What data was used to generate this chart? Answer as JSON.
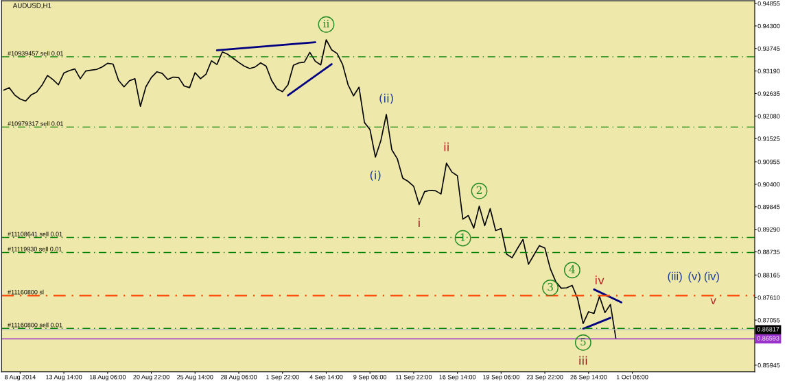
{
  "chart_data": {
    "type": "line",
    "title": "AUDUSD,H1",
    "categories": [
      null,
      null,
      null,
      "8 Aug 2014",
      null,
      null,
      null,
      null,
      null,
      null,
      null,
      "13 Aug 14:00",
      null,
      null,
      null,
      null,
      null,
      null,
      null,
      "18 Aug 06:00",
      null,
      null,
      null,
      null,
      null,
      null,
      null,
      "20 Aug 22:00",
      null,
      null,
      null,
      null,
      null,
      null,
      null,
      "25 Aug 14:00",
      null,
      null,
      null,
      null,
      null,
      null,
      null,
      "28 Aug 06:00",
      null,
      null,
      null,
      null,
      null,
      null,
      null,
      "1 Sep 22:00",
      null,
      null,
      null,
      null,
      null,
      null,
      null,
      "4 Sep 14:00",
      null,
      null,
      null,
      null,
      null,
      null,
      null,
      "9 Sep 06:00",
      null,
      null,
      null,
      null,
      null,
      null,
      null,
      "11 Sep 22:00",
      null,
      null,
      null,
      null,
      null,
      null,
      null,
      "16 Sep 14:00",
      null,
      null,
      null,
      null,
      null,
      null,
      null,
      "19 Sep 06:00",
      null,
      null,
      null,
      null,
      null,
      null,
      null,
      "23 Sep 22:00",
      null,
      null,
      null,
      null,
      null,
      null,
      null,
      "26 Sep 14:00",
      null,
      null,
      null,
      null,
      null,
      null,
      null,
      "1 Oct 06:00",
      null,
      null,
      null,
      null,
      null,
      null,
      null,
      null,
      null,
      null,
      null,
      null,
      null,
      null,
      null,
      null,
      null,
      null,
      null,
      null,
      null,
      null
    ],
    "ylim": [
      0.8578,
      0.9492
    ],
    "yticks": [
      {
        "value": 0.94855,
        "label": "0.94855"
      },
      {
        "value": 0.943,
        "label": "0.94300"
      },
      {
        "value": 0.93745,
        "label": "0.93745"
      },
      {
        "value": 0.9319,
        "label": "0.93190"
      },
      {
        "value": 0.92635,
        "label": "0.92635"
      },
      {
        "value": 0.9208,
        "label": "0.92080"
      },
      {
        "value": 0.91525,
        "label": "0.91525"
      },
      {
        "value": 0.90955,
        "label": "0.90955"
      },
      {
        "value": 0.904,
        "label": "0.90400"
      },
      {
        "value": 0.89845,
        "label": "0.89845"
      },
      {
        "value": 0.8929,
        "label": "0.89290"
      },
      {
        "value": 0.88735,
        "label": "0.88735"
      },
      {
        "value": 0.88165,
        "label": "0.88165"
      },
      {
        "value": 0.8761,
        "label": "0.87610"
      },
      {
        "value": 0.87055,
        "label": "0.87055"
      },
      {
        "value": 0.865,
        "label": null
      },
      {
        "value": 0.85945,
        "label": "0.85945"
      }
    ],
    "series": [
      {
        "color": "#000000",
        "values": [
          0.9272,
          0.9278,
          0.926,
          0.925,
          0.9245,
          0.926,
          0.9267,
          0.9284,
          0.9308,
          0.9298,
          0.9285,
          0.9314,
          0.932,
          0.9324,
          0.93,
          0.9319,
          0.9321,
          0.9323,
          0.9329,
          0.9338,
          0.9336,
          0.9296,
          0.928,
          0.9295,
          0.93,
          0.9232,
          0.928,
          0.9303,
          0.9317,
          0.9313,
          0.9298,
          0.9304,
          0.9303,
          0.9282,
          0.9278,
          0.9315,
          0.93,
          0.9311,
          0.9344,
          0.9335,
          0.9366,
          0.936,
          0.935,
          0.934,
          0.9331,
          0.9325,
          0.9329,
          0.9339,
          0.9331,
          0.9296,
          0.9275,
          0.9268,
          0.9285,
          0.9333,
          0.9339,
          0.9341,
          0.9365,
          0.9343,
          0.9334,
          0.9396,
          0.9371,
          0.9362,
          0.9335,
          0.9285,
          0.9258,
          0.9279,
          0.9192,
          0.9175,
          0.9107,
          0.9148,
          0.9212,
          0.9125,
          0.9103,
          0.9055,
          0.9047,
          0.9035,
          0.899,
          0.9022,
          0.9025,
          0.9024,
          0.9016,
          0.9092,
          0.907,
          0.9061,
          0.8954,
          0.8963,
          0.8932,
          0.8986,
          0.8938,
          0.898,
          0.8926,
          0.8931,
          0.8868,
          0.8859,
          0.8882,
          0.8904,
          0.8843,
          0.8866,
          0.8889,
          0.8883,
          0.8832,
          0.88,
          0.8784,
          0.8785,
          0.8791,
          0.8758,
          0.8697,
          0.8726,
          0.8722,
          0.8764,
          0.8724,
          0.8744,
          0.866,
          null,
          null,
          null,
          null,
          null,
          null,
          null,
          null,
          null,
          null,
          null,
          null,
          null,
          null,
          null,
          null,
          null,
          null,
          null,
          null,
          null,
          null,
          null,
          null,
          null
        ]
      },
      {
        "color": "#000080",
        "values": [
          null,
          null,
          null,
          null,
          null,
          null,
          null,
          null,
          null,
          null,
          null,
          null,
          null,
          null,
          null,
          null,
          null,
          null,
          null,
          null,
          null,
          null,
          null,
          null,
          null,
          null,
          null,
          null,
          null,
          null,
          null,
          null,
          null,
          null,
          null,
          null,
          null,
          null,
          null,
          0.937,
          null,
          null,
          null,
          null,
          null,
          null,
          null,
          null,
          null,
          null,
          null,
          null,
          null,
          null,
          null,
          null,
          null,
          0.939,
          null,
          null,
          null,
          null,
          null,
          null,
          null,
          null,
          null,
          null,
          null,
          null,
          null,
          null,
          null,
          null,
          null,
          null,
          null,
          null,
          null,
          null,
          null,
          null,
          null,
          null,
          null,
          null,
          null,
          null,
          null,
          null,
          null,
          null,
          null,
          null,
          null,
          null,
          null,
          null,
          null,
          null,
          null,
          null,
          null,
          null,
          null,
          null,
          null,
          null,
          null,
          null,
          null,
          null,
          null,
          null,
          null,
          null,
          null,
          null,
          null,
          null,
          null,
          null,
          null,
          null,
          null,
          null,
          null,
          null,
          null,
          null,
          null,
          null,
          null,
          null,
          null,
          null,
          null,
          null
        ]
      },
      {
        "color": "#000080",
        "values": [
          null,
          null,
          null,
          null,
          null,
          null,
          null,
          null,
          null,
          null,
          null,
          null,
          null,
          null,
          null,
          null,
          null,
          null,
          null,
          null,
          null,
          null,
          null,
          null,
          null,
          null,
          null,
          null,
          null,
          null,
          null,
          null,
          null,
          null,
          null,
          null,
          null,
          null,
          null,
          null,
          null,
          null,
          null,
          null,
          null,
          null,
          null,
          null,
          null,
          null,
          null,
          null,
          0.9259,
          null,
          null,
          null,
          null,
          null,
          null,
          null,
          0.9336,
          null,
          null,
          null,
          null,
          null,
          null,
          null,
          null,
          null,
          null,
          null,
          null,
          null,
          null,
          null,
          null,
          null,
          null,
          null,
          null,
          null,
          null,
          null,
          null,
          null,
          null,
          null,
          null,
          null,
          null,
          null,
          null,
          null,
          null,
          null,
          null,
          null,
          null,
          null,
          null,
          null,
          null,
          null,
          null,
          null,
          null,
          null,
          null,
          null,
          null,
          null,
          null,
          null,
          null,
          null,
          null,
          null,
          null,
          null,
          null,
          null,
          null,
          null,
          null,
          null,
          null,
          null,
          null,
          null,
          null,
          null,
          null,
          null,
          null,
          null,
          null,
          null
        ]
      },
      {
        "color": "#000080",
        "values": [
          null,
          null,
          null,
          null,
          null,
          null,
          null,
          null,
          null,
          null,
          null,
          null,
          null,
          null,
          null,
          null,
          null,
          null,
          null,
          null,
          null,
          null,
          null,
          null,
          null,
          null,
          null,
          null,
          null,
          null,
          null,
          null,
          null,
          null,
          null,
          null,
          null,
          null,
          null,
          null,
          null,
          null,
          null,
          null,
          null,
          null,
          null,
          null,
          null,
          null,
          null,
          null,
          null,
          null,
          null,
          null,
          null,
          null,
          null,
          null,
          null,
          null,
          null,
          null,
          null,
          null,
          null,
          null,
          null,
          null,
          null,
          null,
          null,
          null,
          null,
          null,
          null,
          null,
          null,
          null,
          null,
          null,
          null,
          null,
          null,
          null,
          null,
          null,
          null,
          null,
          null,
          null,
          null,
          null,
          null,
          null,
          null,
          null,
          null,
          null,
          null,
          null,
          null,
          null,
          null,
          null,
          null,
          null,
          0.8781,
          null,
          null,
          null,
          null,
          0.8749,
          null,
          null,
          null,
          null,
          null,
          null,
          null,
          null,
          null,
          null,
          null,
          null,
          null,
          null,
          null,
          null,
          null,
          null,
          null,
          null,
          null,
          null,
          null,
          null
        ]
      },
      {
        "color": "#000080",
        "values": [
          null,
          null,
          null,
          null,
          null,
          null,
          null,
          null,
          null,
          null,
          null,
          null,
          null,
          null,
          null,
          null,
          null,
          null,
          null,
          null,
          null,
          null,
          null,
          null,
          null,
          null,
          null,
          null,
          null,
          null,
          null,
          null,
          null,
          null,
          null,
          null,
          null,
          null,
          null,
          null,
          null,
          null,
          null,
          null,
          null,
          null,
          null,
          null,
          null,
          null,
          null,
          null,
          null,
          null,
          null,
          null,
          null,
          null,
          null,
          null,
          null,
          null,
          null,
          null,
          null,
          null,
          null,
          null,
          null,
          null,
          null,
          null,
          null,
          null,
          null,
          null,
          null,
          null,
          null,
          null,
          null,
          null,
          null,
          null,
          null,
          null,
          null,
          null,
          null,
          null,
          null,
          null,
          null,
          null,
          null,
          null,
          null,
          null,
          null,
          null,
          null,
          null,
          null,
          null,
          null,
          null,
          0.8684,
          null,
          null,
          null,
          null,
          0.8711,
          null,
          null,
          null,
          null,
          null,
          null,
          null,
          null,
          null,
          null,
          null,
          null,
          null,
          null,
          null,
          null,
          null,
          null,
          null,
          null,
          null,
          null,
          null,
          null,
          null,
          null
        ]
      }
    ],
    "ref_lines": [
      {
        "axis": "y",
        "value": 0.9354,
        "label": "#10939457 sell 0.01",
        "color": "#008000",
        "line_style": "dashdot"
      },
      {
        "axis": "y",
        "value": 0.9181,
        "label": "#10979317 sell 0.01",
        "color": "#008000",
        "line_style": "dashdot"
      },
      {
        "axis": "y",
        "value": 0.8909,
        "label": "#11108641 sell 0.01",
        "color": "#008000",
        "line_style": "dashdot"
      },
      {
        "axis": "y",
        "value": 0.8872,
        "label": "#11119930 sell 0.01",
        "color": "#008000",
        "line_style": "dashdot"
      },
      {
        "axis": "y",
        "value": 0.8766,
        "label": "#11160800 sl",
        "color": "#ff4500",
        "line_style": "dashdot"
      },
      {
        "axis": "y",
        "value": 0.8685,
        "label": "#11160800 sell 0.01",
        "color": "#008000",
        "line_style": "dashdot"
      },
      {
        "axis": "y",
        "value": 0.86817,
        "label": "0.86817",
        "color": "#c0c0c0",
        "line_style": "solid"
      },
      {
        "axis": "y",
        "value": 0.86593,
        "label": "0.86593",
        "color": "#9933cc",
        "line_style": "solid"
      }
    ],
    "annotations": [
      {
        "text": "ii",
        "y": 0.9396
      },
      {
        "text": "(i)",
        "y": 0.9107
      },
      {
        "text": "(ii)",
        "y": 0.9212
      },
      {
        "text": "ii",
        "y": 0.9092
      },
      {
        "text": "i",
        "y": 0.899
      },
      {
        "text": "1",
        "y": 0.8954
      },
      {
        "text": "2",
        "y": 0.8986
      },
      {
        "text": "3",
        "y": 0.8832
      },
      {
        "text": "4",
        "y": 0.8791
      },
      {
        "text": "5",
        "y": 0.8697
      },
      {
        "text": "iii",
        "y": 0.8697
      },
      {
        "text": "iv",
        "y": 0.8764
      },
      "(iii)",
      "(v)",
      "(iv)",
      "v"
    ]
  }
}
